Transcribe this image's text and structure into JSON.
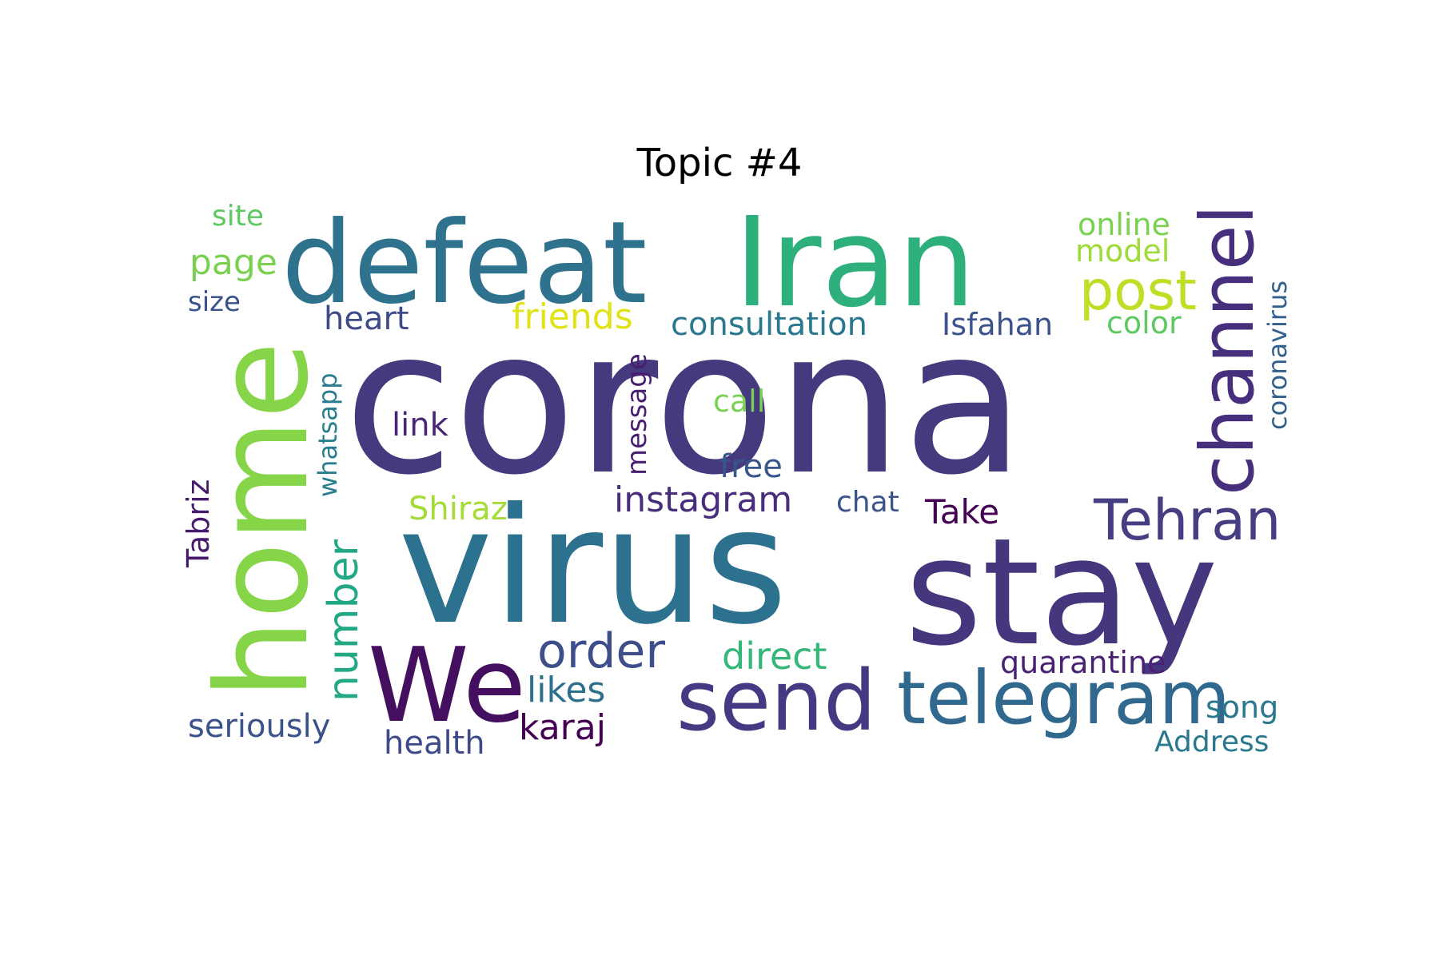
{
  "title": "Topic #4",
  "words": [
    {
      "text": "corona",
      "color": "#463a7f"
    },
    {
      "text": "Iran",
      "color": "#2eb07c"
    },
    {
      "text": "defeat",
      "color": "#2f728d"
    },
    {
      "text": "virus",
      "color": "#2c728e"
    },
    {
      "text": "stay",
      "color": "#46367e"
    },
    {
      "text": "home",
      "color": "#86d549"
    },
    {
      "text": "We",
      "color": "#440f5f"
    },
    {
      "text": "send",
      "color": "#443a83"
    },
    {
      "text": "telegram",
      "color": "#31688e"
    },
    {
      "text": "channel",
      "color": "#46307e"
    },
    {
      "text": "post",
      "color": "#bddf26"
    },
    {
      "text": "Tehran",
      "color": "#463e82"
    },
    {
      "text": "order",
      "color": "#3d4e8a"
    },
    {
      "text": "number",
      "color": "#22a884"
    },
    {
      "text": "coronavirus",
      "color": "#34608d"
    },
    {
      "text": "friends",
      "color": "#dfe318"
    },
    {
      "text": "consultation",
      "color": "#2a788e"
    },
    {
      "text": "Isfahan",
      "color": "#3b528b"
    },
    {
      "text": "color",
      "color": "#5ec962"
    },
    {
      "text": "online",
      "color": "#7ad151"
    },
    {
      "text": "model",
      "color": "#a0da39"
    },
    {
      "text": "page",
      "color": "#7ad151"
    },
    {
      "text": "site",
      "color": "#5ec962"
    },
    {
      "text": "size",
      "color": "#3b528b"
    },
    {
      "text": "heart",
      "color": "#3e4a89"
    },
    {
      "text": "whatsapp",
      "color": "#287d8e"
    },
    {
      "text": "message",
      "color": "#481f70"
    },
    {
      "text": "link",
      "color": "#482677"
    },
    {
      "text": "call",
      "color": "#7ad151"
    },
    {
      "text": "free",
      "color": "#39568c"
    },
    {
      "text": "instagram",
      "color": "#472d7b"
    },
    {
      "text": "chat",
      "color": "#3b528b"
    },
    {
      "text": "Take",
      "color": "#440154"
    },
    {
      "text": "Shiraz",
      "color": "#a5db36"
    },
    {
      "text": "Tabriz",
      "color": "#481a6c"
    },
    {
      "text": "direct",
      "color": "#35b779"
    },
    {
      "text": "likes",
      "color": "#2d708e"
    },
    {
      "text": "quarantine",
      "color": "#482173"
    },
    {
      "text": "seriously",
      "color": "#3b528b"
    },
    {
      "text": "health",
      "color": "#3e4a89"
    },
    {
      "text": "karaj",
      "color": "#440154"
    },
    {
      "text": "song",
      "color": "#2a788e"
    },
    {
      "text": "Address",
      "color": "#2a788e"
    }
  ]
}
